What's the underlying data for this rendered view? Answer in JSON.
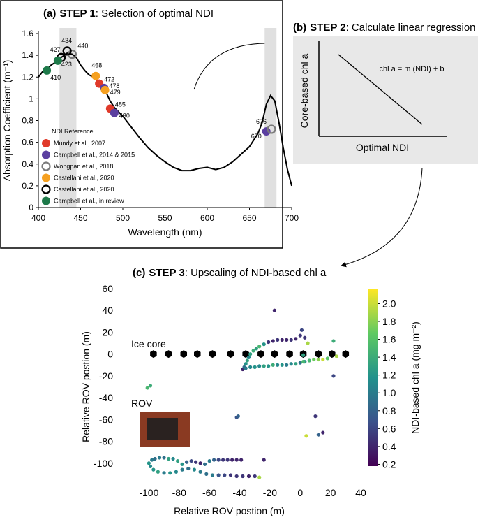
{
  "chart_data": [
    {
      "type": "line",
      "panel": "(a)",
      "step": "STEP 1",
      "title": ": Selection of optimal NDI",
      "x_label": "Wavelength (nm)",
      "y_label": "Absorption Coefficient (m⁻¹)",
      "x": [
        400,
        405,
        410,
        415,
        423,
        427,
        434,
        440,
        445,
        450,
        455,
        460,
        468,
        472,
        478,
        479,
        485,
        490,
        495,
        500,
        510,
        520,
        530,
        540,
        550,
        560,
        570,
        580,
        590,
        600,
        610,
        620,
        630,
        640,
        650,
        660,
        665,
        670,
        675,
        680,
        685,
        690,
        695,
        700
      ],
      "values": [
        1.2,
        1.25,
        1.27,
        1.31,
        1.35,
        1.38,
        1.42,
        1.41,
        1.38,
        1.31,
        1.26,
        1.22,
        1.19,
        1.14,
        1.1,
        1.08,
        0.98,
        0.92,
        0.88,
        0.84,
        0.74,
        0.64,
        0.55,
        0.48,
        0.42,
        0.37,
        0.34,
        0.34,
        0.36,
        0.37,
        0.35,
        0.37,
        0.42,
        0.49,
        0.56,
        0.68,
        0.78,
        0.95,
        1.03,
        0.98,
        0.78,
        0.55,
        0.35,
        0.2
      ],
      "color": "#000000",
      "shaded_ranges": [
        [
          425,
          445
        ],
        [
          668,
          682
        ]
      ],
      "legend_title": "NDI Reference",
      "series": [
        {
          "name": "Mundy et al., 2007",
          "color": "#e03a2a",
          "hollow": false,
          "x": [
            472,
            485
          ],
          "values": [
            1.14,
            0.91
          ]
        },
        {
          "name": "Campbell et al., 2014 & 2015",
          "color": "#5b3fa0",
          "hollow": false,
          "x": [
            478,
            490,
            670
          ],
          "values": [
            1.1,
            0.87,
            0.7
          ]
        },
        {
          "name": "Wongpan et al., 2018",
          "color": "#7a7a7a",
          "hollow": true,
          "x": [
            440,
            676
          ],
          "values": [
            1.41,
            0.72
          ]
        },
        {
          "name": "Castellani et al., 2020",
          "color": "#f5a020",
          "hollow": false,
          "x": [
            468,
            479
          ],
          "values": [
            1.21,
            1.08
          ]
        },
        {
          "name": "Castellani et al., 2020",
          "color": "#000000",
          "hollow": true,
          "x": [
            427,
            434
          ],
          "values": [
            1.38,
            1.44
          ]
        },
        {
          "name": "Campbell et al., in review",
          "color": "#1e7a4a",
          "hollow": false,
          "x": [
            410,
            423
          ],
          "values": [
            1.26,
            1.35
          ]
        }
      ],
      "xlim": [
        400,
        700
      ],
      "xticks": [
        400,
        450,
        500,
        550,
        600,
        650,
        700
      ],
      "ylim": [
        0,
        1.6
      ],
      "yticks": [
        0,
        0.2,
        0.4,
        0.6,
        0.8,
        1,
        1.2,
        1.4,
        1.6
      ]
    },
    {
      "type": "scatter",
      "panel": "(c)",
      "step": "STEP 3",
      "title": ": Upscaling of NDI-based chl a",
      "x_label": "Relative ROV postion (m)",
      "y_label": "Relative ROV postion (m)",
      "colorbar_label": "NDI-based chl a (mg m⁻²)",
      "series": [
        {
          "name": "Ice core",
          "color": "#000000",
          "x": [
            -97,
            -87,
            -77,
            -68,
            -58,
            -46,
            -36,
            -26,
            -17,
            -7,
            2,
            12,
            21,
            30
          ],
          "values": [
            0,
            0,
            0,
            0,
            0,
            0,
            0,
            0,
            0,
            0,
            0,
            0,
            0,
            0
          ]
        },
        {
          "name": "ROV",
          "x": [
            -38,
            -37,
            -36,
            -35,
            -34,
            -33,
            -31,
            -29,
            -27,
            -24,
            -21,
            -18,
            -15,
            -12,
            -9,
            -6,
            -3,
            0,
            1,
            3,
            5,
            -36,
            -33,
            -30,
            -27,
            -24,
            -21,
            -18,
            -15,
            -12,
            -9,
            -6,
            -3,
            0,
            3,
            6,
            9,
            12,
            15,
            18,
            2,
            2,
            -100,
            -98,
            -96,
            -93,
            -90,
            -87,
            -84,
            -81,
            -78,
            -75,
            -72,
            -69,
            -66,
            -63,
            -60,
            -57,
            -54,
            -51,
            -48,
            -45,
            -42,
            -39,
            -99,
            -97,
            -94,
            -90,
            -86,
            -82,
            -78,
            -74,
            -70,
            -66,
            -62,
            -58,
            -54,
            -50,
            -46,
            -42,
            -38,
            -34,
            -30,
            -27,
            -17,
            22,
            22,
            -101,
            -99,
            -42,
            -41,
            4,
            10,
            12,
            15,
            -24,
            24
          ],
          "values": [
            -14,
            -12,
            -9,
            -6,
            -3,
            0,
            3,
            5,
            7,
            9,
            11,
            12,
            13,
            13,
            13,
            13,
            14,
            17,
            22,
            15,
            10,
            -13,
            -12,
            -12,
            -11,
            -11,
            -11,
            -10,
            -10,
            -10,
            -10,
            -9,
            -9,
            -8,
            -7,
            -6,
            -5,
            -5,
            -5,
            -4,
            -1,
            -7,
            -100,
            -97,
            -96,
            -95,
            -95,
            -96,
            -96,
            -98,
            -101,
            -99,
            -98,
            -99,
            -100,
            -101,
            -98,
            -97,
            -97,
            -97,
            -97,
            -97,
            -97,
            -97,
            -103,
            -106,
            -108,
            -109,
            -109,
            -108,
            -106,
            -105,
            -106,
            -108,
            -110,
            -111,
            -111,
            -111,
            -111,
            -112,
            -112,
            -112,
            -112,
            -113,
            40,
            12,
            -20,
            -31,
            -29,
            -58,
            -57,
            -75,
            -57,
            -74,
            -72,
            -97,
            -2
          ],
          "color_values": [
            0.4,
            0.9,
            1.2,
            1.3,
            1.1,
            1.3,
            1.4,
            1.3,
            1.5,
            1.2,
            0.5,
            0.4,
            0.5,
            0.4,
            0.4,
            0.5,
            0.4,
            0.5,
            0.6,
            0.5,
            1.9,
            1.0,
            1.1,
            1.2,
            1.1,
            1.3,
            1.2,
            1.4,
            1.1,
            1.2,
            1.0,
            1.1,
            1.3,
            0.9,
            1.2,
            1.5,
            1.7,
            1.8,
            2.0,
            1.6,
            1.3,
            1.5,
            1.2,
            1.0,
            0.9,
            1.0,
            0.9,
            1.3,
            1.1,
            1.3,
            1.2,
            0.8,
            0.6,
            0.5,
            0.4,
            0.9,
            1.0,
            0.8,
            0.6,
            0.5,
            0.5,
            0.4,
            0.4,
            0.4,
            1.1,
            1.2,
            1.3,
            1.0,
            1.2,
            1.1,
            1.0,
            0.9,
            1.1,
            1.0,
            0.9,
            1.0,
            0.7,
            0.6,
            0.5,
            0.5,
            0.5,
            0.4,
            0.5,
            1.9,
            0.4,
            1.4,
            0.6,
            1.5,
            1.4,
            0.7,
            0.8,
            2.0,
            0.5,
            0.8,
            0.4,
            0.4,
            1.9
          ]
        }
      ],
      "xlim": [
        -120,
        40
      ],
      "xticks": [
        -100,
        -80,
        -60,
        -40,
        -20,
        0,
        20,
        40
      ],
      "ylim": [
        -120,
        60
      ],
      "yticks": [
        -100,
        -80,
        -60,
        -40,
        -20,
        0,
        20,
        40,
        60
      ],
      "clim": [
        0.18,
        2.16
      ],
      "cticks": [
        0.2,
        0.4,
        0.6,
        0.8,
        {
          "value": 1,
          "label": "1.0"
        },
        1.2,
        1.4,
        1.6,
        1.8,
        {
          "value": 2,
          "label": "2.0"
        }
      ]
    }
  ],
  "diagram": {
    "panel": "(b)",
    "step": "STEP 2",
    "title": ": Calculate linear regression",
    "y_label": "Core-based chl a",
    "x_label": "Optimal NDI",
    "equation": "chl a = m (NDI) + b"
  }
}
